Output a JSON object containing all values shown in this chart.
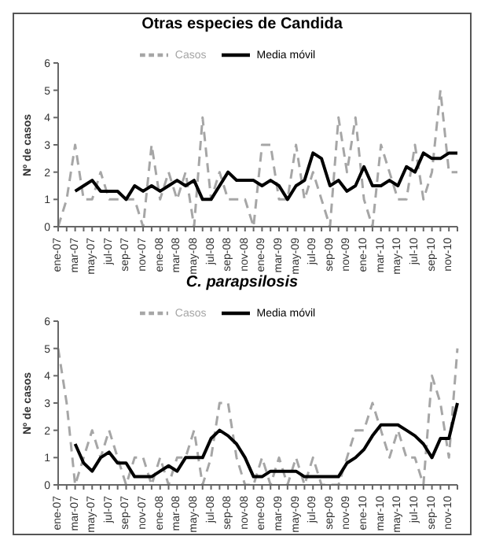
{
  "chart_data": [
    {
      "type": "line",
      "title": "Otras especies de Candida",
      "ylabel": "Nº de casos",
      "categories": [
        "ene-07",
        null,
        "mar-07",
        null,
        "may-07",
        null,
        "jul-07",
        null,
        "sep-07",
        null,
        "nov-07",
        null,
        "ene-08",
        null,
        "mar-08",
        null,
        "may-08",
        null,
        "jul-08",
        null,
        "sep-08",
        null,
        "nov-08",
        null,
        "ene-09",
        null,
        "mar-09",
        null,
        "may-09",
        null,
        "jul-09",
        null,
        "sep-09",
        null,
        "nov-09",
        null,
        "ene-10",
        null,
        "mar-10",
        null,
        "may-10",
        null,
        "jul-10",
        null,
        "sep-10",
        null,
        "nov-10",
        null
      ],
      "series": [
        {
          "name": "Casos",
          "color": "#a6a6a6",
          "line_style": "dashed",
          "values": [
            0,
            1,
            3,
            1,
            1,
            2,
            1,
            1,
            1,
            1,
            0,
            3,
            1,
            2,
            1,
            2,
            0,
            4,
            1,
            2,
            1,
            1,
            1,
            0,
            3,
            3,
            1,
            1,
            3,
            1,
            2,
            1,
            0,
            4,
            2,
            4,
            1,
            0,
            3,
            2,
            1,
            1,
            3,
            1,
            2,
            5,
            2,
            2
          ]
        },
        {
          "name": "Media móvil",
          "color": "#000000",
          "line_style": "solid",
          "values": [
            null,
            null,
            1.3,
            1.5,
            1.7,
            1.3,
            1.3,
            1.3,
            1.0,
            1.5,
            1.3,
            1.5,
            1.3,
            1.5,
            1.7,
            1.5,
            1.7,
            1.0,
            1.0,
            1.5,
            2.0,
            1.7,
            1.7,
            1.7,
            1.5,
            1.7,
            1.5,
            1.0,
            1.5,
            1.7,
            2.7,
            2.5,
            1.5,
            1.7,
            1.3,
            1.5,
            2.2,
            1.5,
            1.5,
            1.7,
            1.5,
            2.2,
            2.0,
            2.7,
            2.5,
            2.5,
            2.7,
            2.7
          ]
        }
      ],
      "ylim": [
        0,
        6
      ],
      "yticks": [
        0,
        1,
        2,
        3,
        4,
        5,
        6
      ],
      "grid": false,
      "legend": "top",
      "marker": "none"
    },
    {
      "type": "line",
      "title": "C. parapsilosis",
      "ylabel": "Nº de casos",
      "categories": [
        "ene-07",
        null,
        "mar-07",
        null,
        "may-07",
        null,
        "jul-07",
        null,
        "sep-07",
        null,
        "nov-07",
        null,
        "ene-08",
        null,
        "mar-08",
        null,
        "may-08",
        null,
        "jul-08",
        null,
        "sep-08",
        null,
        "nov-08",
        null,
        "ene-09",
        null,
        "mar-09",
        null,
        "may-09",
        null,
        "jul-09",
        null,
        "sep-09",
        null,
        "nov-09",
        null,
        "ene-10",
        null,
        "mar-10",
        null,
        "may-10",
        null,
        "jul-10",
        null,
        "sep-10",
        null,
        "nov-10",
        null
      ],
      "series": [
        {
          "name": "Casos",
          "color": "#a6a6a6",
          "line_style": "dashed",
          "values": [
            5,
            3,
            0,
            1,
            2,
            1,
            2,
            1,
            0,
            1,
            1,
            0,
            1,
            0,
            1,
            1,
            2,
            0,
            1,
            3,
            3,
            1,
            0,
            0,
            1,
            0,
            1,
            0,
            1,
            0,
            1,
            0,
            0,
            0,
            1,
            2,
            2,
            3,
            2,
            1,
            2,
            1,
            1,
            0,
            4,
            3,
            1,
            5
          ]
        },
        {
          "name": "Media móvil",
          "color": "#000000",
          "line_style": "solid",
          "values": [
            null,
            null,
            1.5,
            0.8,
            0.5,
            1.0,
            1.2,
            0.8,
            0.8,
            0.3,
            0.3,
            0.3,
            0.5,
            0.7,
            0.5,
            1.0,
            1.0,
            1.0,
            1.7,
            2.0,
            1.8,
            1.5,
            1.0,
            0.3,
            0.3,
            0.5,
            0.5,
            0.5,
            0.5,
            0.3,
            0.3,
            0.3,
            0.3,
            0.3,
            0.8,
            1.0,
            1.3,
            1.8,
            2.2,
            2.2,
            2.2,
            2.0,
            1.8,
            1.5,
            1.0,
            1.7,
            1.7,
            3.0
          ]
        }
      ],
      "ylim": [
        0,
        6
      ],
      "yticks": [
        0,
        1,
        2,
        3,
        4,
        5,
        6
      ],
      "grid": false,
      "legend": "top",
      "marker": "none"
    }
  ]
}
